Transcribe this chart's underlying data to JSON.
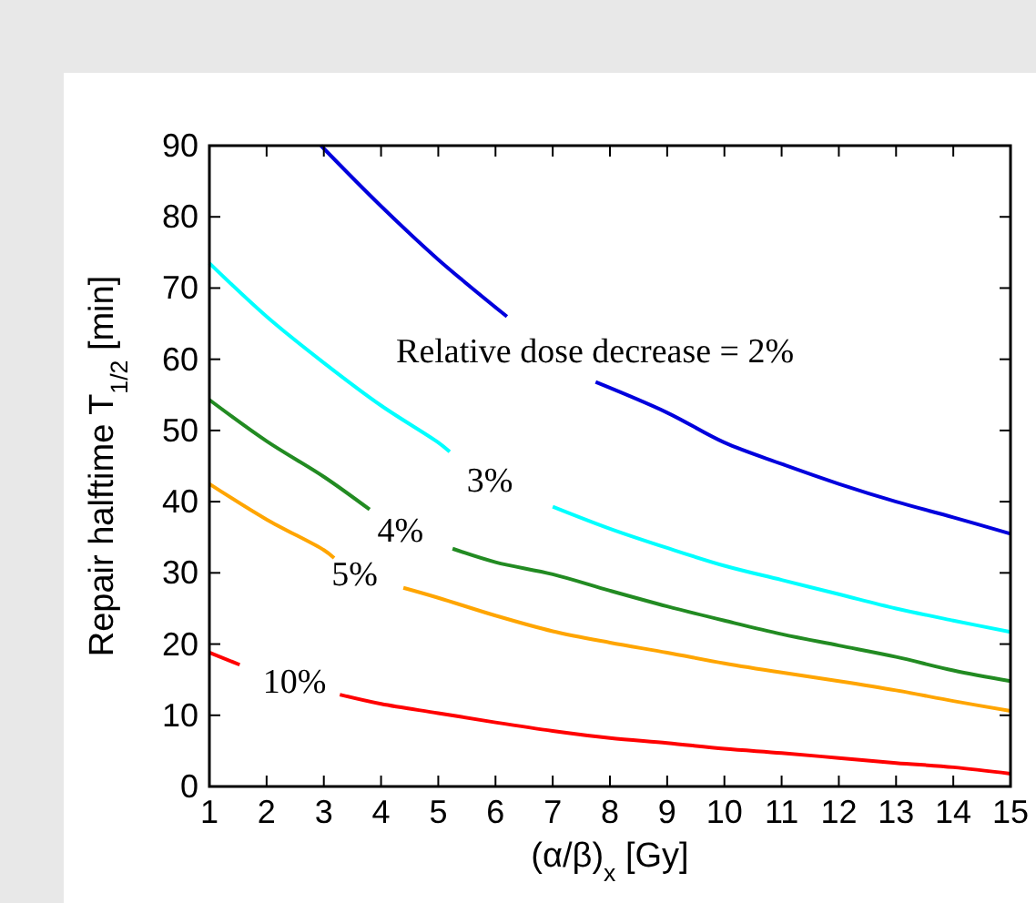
{
  "chart_data": {
    "type": "line",
    "xlabel": "(α/β)$_{x}$ [Gy]",
    "ylabel": "Repair halftime T$_{1/2}$ [min]",
    "xlim": [
      1,
      15
    ],
    "xticks": [
      1,
      2,
      3,
      4,
      5,
      6,
      7,
      8,
      9,
      10,
      11,
      12,
      13,
      14,
      15
    ],
    "ylim": [
      0,
      90
    ],
    "yticks": [
      0,
      10,
      20,
      30,
      40,
      50,
      60,
      70,
      80,
      90
    ],
    "series": [
      {
        "name": "Relative dose decrease = 2%",
        "color": "#0000dd",
        "x": [
          2.95,
          4,
          5,
          6.2,
          7.74,
          7.75,
          9,
          10,
          11,
          12,
          13,
          14,
          15
        ],
        "values": [
          90,
          81.5,
          74,
          66,
          null,
          56.8,
          52.5,
          48.3,
          45.3,
          42.5,
          40,
          37.8,
          35.5
        ]
      },
      {
        "name": "3%",
        "color": "#00ffff",
        "x": [
          1,
          2,
          3,
          4,
          5,
          5.2,
          5.9,
          7,
          8,
          9,
          10,
          11,
          12,
          13,
          14,
          15
        ],
        "values": [
          73.5,
          66,
          59.5,
          53.5,
          48.3,
          47,
          null,
          39.3,
          36.2,
          33.5,
          31,
          29,
          27,
          25,
          23.3,
          21.7
        ]
      },
      {
        "name": "4%",
        "color": "#228b22",
        "x": [
          1,
          2,
          3,
          3.8,
          4.34,
          5.25,
          6,
          7,
          8,
          9,
          10,
          11,
          12,
          13,
          14,
          15
        ],
        "values": [
          54.3,
          48.5,
          43.5,
          38.9,
          null,
          33.4,
          31.5,
          29.8,
          27.5,
          25.3,
          23.3,
          21.4,
          19.8,
          18.2,
          16.3,
          14.8
        ]
      },
      {
        "name": "5%",
        "color": "#ffa500",
        "x": [
          1,
          2,
          3,
          3.18,
          3.54,
          4.39,
          5,
          6,
          7,
          8,
          9,
          10,
          11,
          12,
          13,
          14,
          15
        ],
        "values": [
          42.5,
          37.5,
          33.2,
          32.1,
          null,
          27.9,
          26.5,
          24,
          21.8,
          20.2,
          18.8,
          17.3,
          16,
          14.8,
          13.5,
          12,
          10.6
        ]
      },
      {
        "name": "10%",
        "color": "#ff0000",
        "x": [
          1,
          1.53,
          2.49,
          3.28,
          4,
          5,
          6,
          7,
          8,
          9,
          10,
          11,
          12,
          13,
          14,
          15
        ],
        "values": [
          18.8,
          17.1,
          null,
          12.9,
          11.6,
          10.3,
          9,
          7.8,
          6.8,
          6.1,
          5.3,
          4.7,
          4,
          3.3,
          2.7,
          1.8
        ]
      }
    ]
  }
}
